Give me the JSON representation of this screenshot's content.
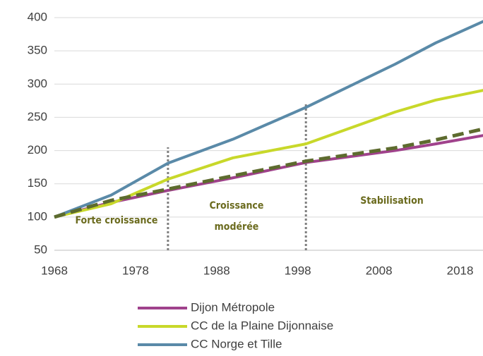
{
  "chart_data": {
    "type": "line",
    "x": [
      1968,
      1975,
      1982,
      1990,
      1999,
      2010,
      2015,
      2021
    ],
    "series": [
      {
        "name": "Dijon Métropole",
        "color": "#a0428c",
        "values": [
          100,
          122,
          140,
          159,
          182,
          200,
          210,
          223
        ]
      },
      {
        "name": "CC de la Plaine Dijonnaise",
        "color": "#c8d82a",
        "values": [
          100,
          120,
          157,
          189,
          210,
          258,
          276,
          291
        ]
      },
      {
        "name": "CC Norge et Tille",
        "color": "#5a8aa8",
        "values": [
          100,
          133,
          181,
          217,
          265,
          330,
          362,
          395
        ]
      },
      {
        "color": "#5d6b2e",
        "dashed": true,
        "values": [
          100,
          125,
          142,
          162,
          184,
          204,
          216,
          233
        ]
      }
    ],
    "xlim": [
      1968,
      2021
    ],
    "xticks": [
      1968,
      1978,
      1988,
      1998,
      2008,
      2018
    ],
    "ylim": [
      50,
      400
    ],
    "yticks": [
      50,
      100,
      150,
      200,
      250,
      300,
      350,
      400
    ],
    "grid": true,
    "dividers": [
      {
        "x": 1982,
        "top": 205
      },
      {
        "x": 1999,
        "top": 270
      }
    ],
    "annotations": [
      [
        "Forte croissance"
      ],
      [
        "Croissance",
        "modérée"
      ],
      [
        "Stabilisation"
      ]
    ]
  }
}
